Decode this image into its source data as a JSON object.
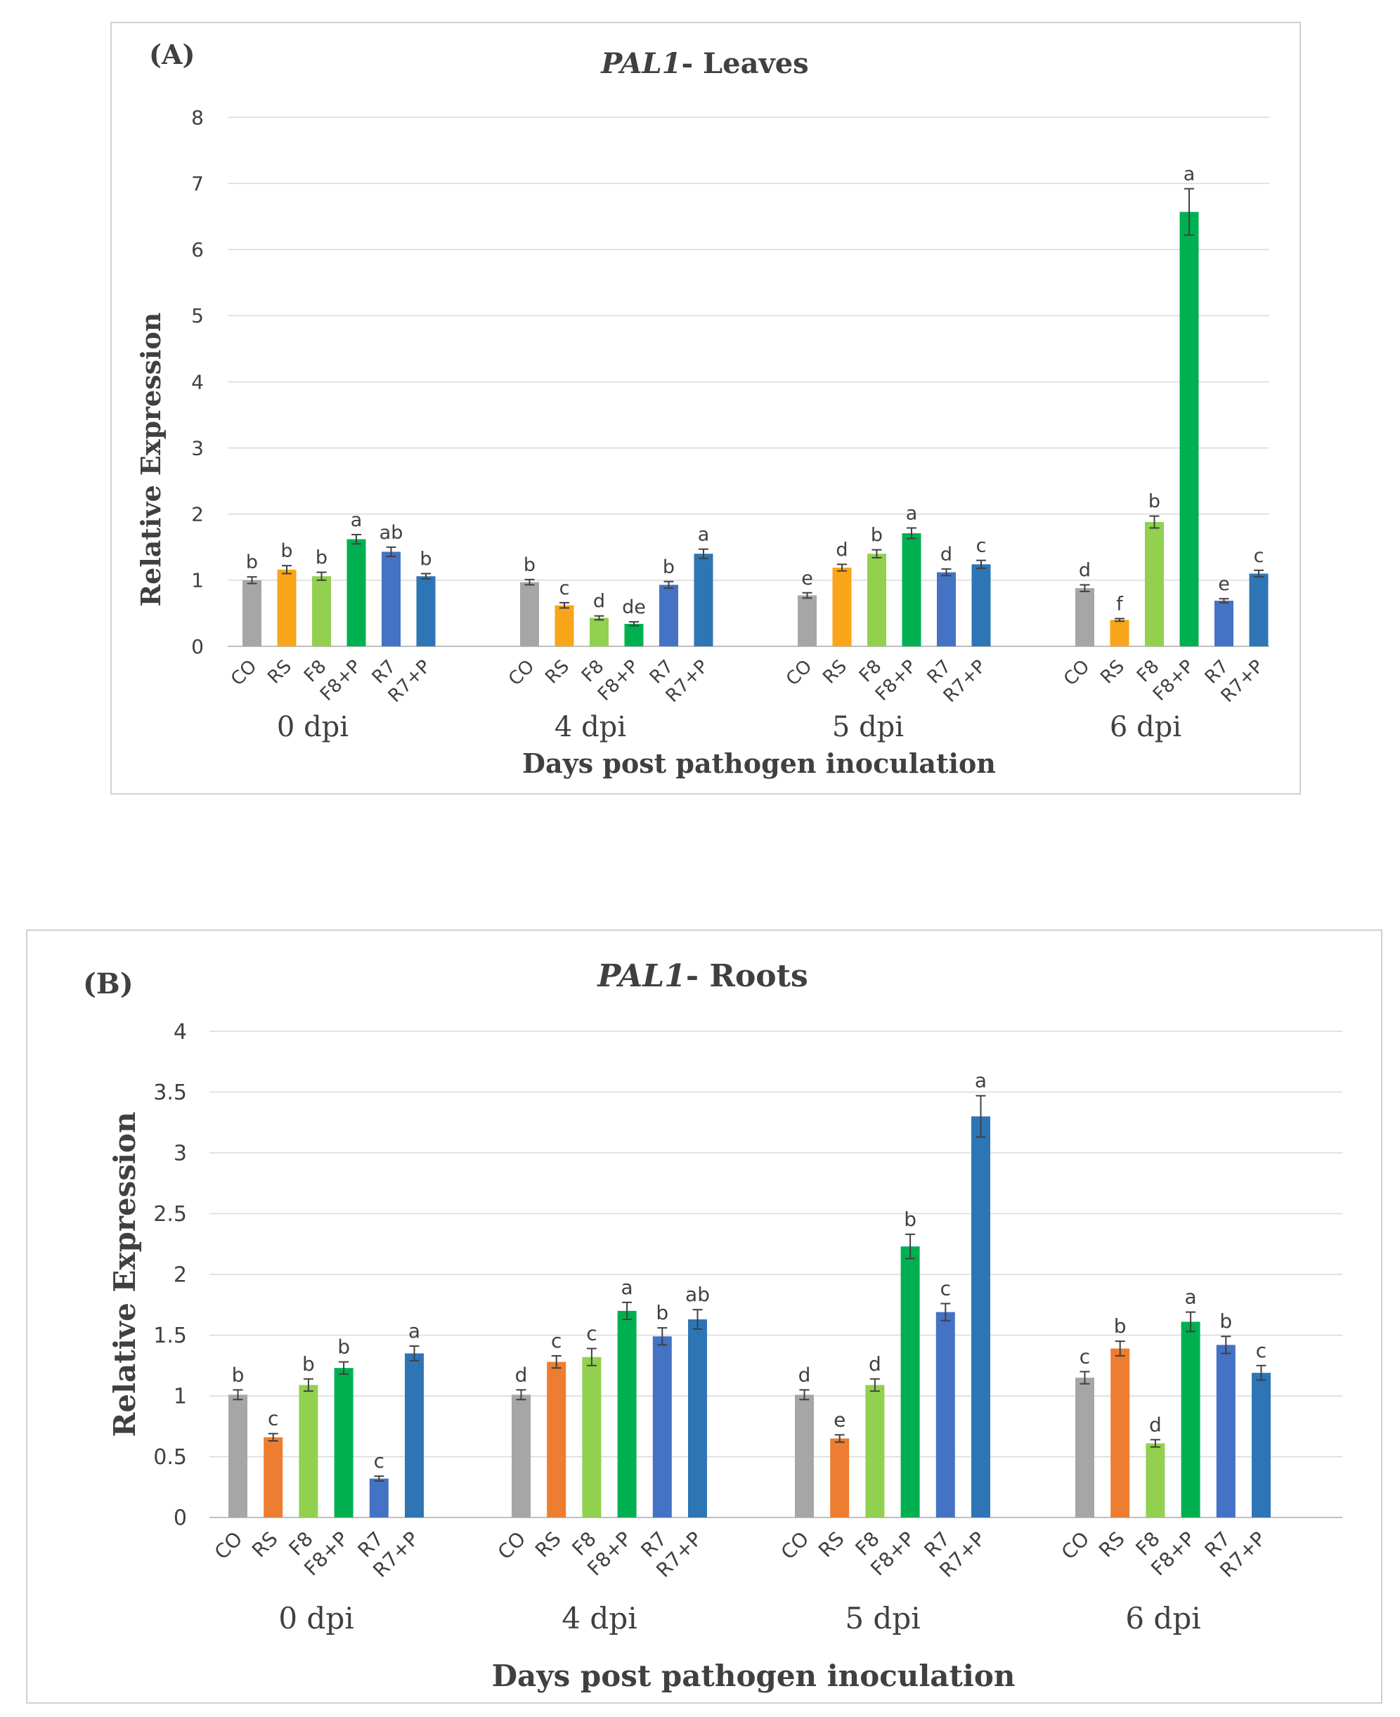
{
  "chart_data": [
    {
      "panel_label": "(A)",
      "title_gene": "PAL1",
      "title_rest": "- Leaves",
      "type": "bar",
      "ylabel": "Relative Expression",
      "xlabel": "Days post pathogen inoculation",
      "ylim": [
        0,
        8
      ],
      "yticks": [
        "0",
        "1",
        "2",
        "3",
        "4",
        "5",
        "6",
        "7",
        "8"
      ],
      "categories": [
        "CO",
        "RS",
        "F8",
        "F8+P",
        "R7",
        "R7+P"
      ],
      "groups": [
        {
          "label": "0 dpi",
          "values": [
            1.0,
            1.16,
            1.06,
            1.62,
            1.43,
            1.06
          ],
          "errors": [
            0.05,
            0.06,
            0.06,
            0.07,
            0.07,
            0.04
          ],
          "letters": [
            "b",
            "b",
            "b",
            "a",
            "ab",
            "b"
          ]
        },
        {
          "label": "4 dpi",
          "values": [
            0.97,
            0.62,
            0.43,
            0.34,
            0.93,
            1.4
          ],
          "errors": [
            0.04,
            0.04,
            0.03,
            0.03,
            0.05,
            0.07
          ],
          "letters": [
            "b",
            "c",
            "d",
            "de",
            "b",
            "a"
          ]
        },
        {
          "label": "5 dpi",
          "values": [
            0.77,
            1.19,
            1.4,
            1.71,
            1.12,
            1.24
          ],
          "errors": [
            0.04,
            0.05,
            0.06,
            0.08,
            0.05,
            0.06
          ],
          "letters": [
            "e",
            "d",
            "b",
            "a",
            "d",
            "c"
          ]
        },
        {
          "label": "6 dpi",
          "values": [
            0.88,
            0.4,
            1.88,
            6.57,
            0.69,
            1.1
          ],
          "errors": [
            0.05,
            0.02,
            0.09,
            0.35,
            0.03,
            0.05
          ],
          "letters": [
            "d",
            "f",
            "b",
            "a",
            "e",
            "c"
          ]
        }
      ],
      "colors": [
        "#a6a6a6",
        "#f9a51a",
        "#92d050",
        "#00b050",
        "#4472c4",
        "#2e75b6"
      ]
    },
    {
      "panel_label": "(B)",
      "title_gene": "PAL1",
      "title_rest": "- Roots",
      "type": "bar",
      "ylabel": "Relative Expression",
      "xlabel": "Days post pathogen  inoculation",
      "ylim": [
        0,
        4
      ],
      "yticks": [
        "0",
        "0.5",
        "1",
        "1.5",
        "2",
        "2.5",
        "3",
        "3.5",
        "4"
      ],
      "categories": [
        "CO",
        "RS",
        "F8",
        "F8+P",
        "R7",
        "R7+P"
      ],
      "groups": [
        {
          "label": "0 dpi",
          "values": [
            1.01,
            0.66,
            1.09,
            1.23,
            0.32,
            1.35
          ],
          "errors": [
            0.04,
            0.03,
            0.05,
            0.05,
            0.02,
            0.06
          ],
          "letters": [
            "b",
            "c",
            "b",
            "b",
            "c",
            "a"
          ]
        },
        {
          "label": "4 dpi",
          "values": [
            1.01,
            1.28,
            1.32,
            1.7,
            1.49,
            1.63
          ],
          "errors": [
            0.04,
            0.05,
            0.07,
            0.07,
            0.07,
            0.08
          ],
          "letters": [
            "d",
            "c",
            "c",
            "a",
            "b",
            "ab"
          ]
        },
        {
          "label": "5 dpi",
          "values": [
            1.01,
            0.65,
            1.09,
            2.23,
            1.69,
            3.3
          ],
          "errors": [
            0.04,
            0.03,
            0.05,
            0.1,
            0.07,
            0.17
          ],
          "letters": [
            "d",
            "e",
            "d",
            "b",
            "c",
            "a"
          ]
        },
        {
          "label": "6 dpi",
          "values": [
            1.15,
            1.39,
            0.61,
            1.61,
            1.42,
            1.19
          ],
          "errors": [
            0.05,
            0.06,
            0.03,
            0.08,
            0.07,
            0.06
          ],
          "letters": [
            "c",
            "b",
            "d",
            "a",
            "b",
            "c"
          ]
        }
      ],
      "colors": [
        "#a6a6a6",
        "#ed7d31",
        "#92d050",
        "#00b050",
        "#4472c4",
        "#2e75b6"
      ]
    }
  ]
}
